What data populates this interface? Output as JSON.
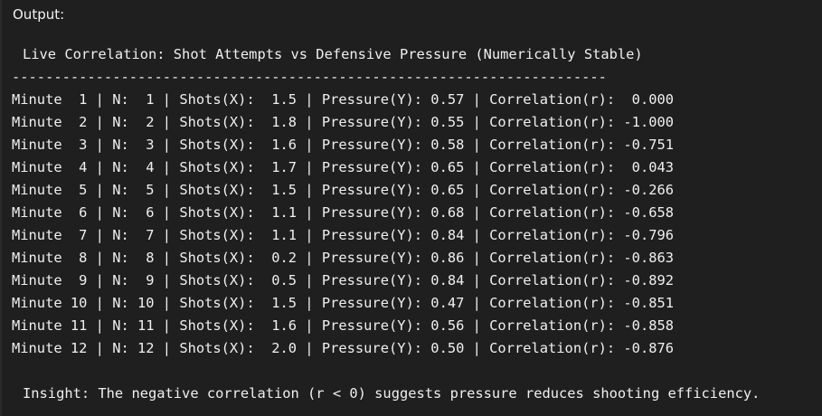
{
  "output_label": "Output:",
  "title": "Live Correlation: Shot Attempts vs Defensive Pressure (Numerically Stable)",
  "separator": "-----------------------------------------------------------------------",
  "rows": [
    "Minute  1 | N:  1 | Shots(X):  1.5 | Pressure(Y): 0.57 | Correlation(r):  0.000",
    "Minute  2 | N:  2 | Shots(X):  1.8 | Pressure(Y): 0.55 | Correlation(r): -1.000",
    "Minute  3 | N:  3 | Shots(X):  1.6 | Pressure(Y): 0.58 | Correlation(r): -0.751",
    "Minute  4 | N:  4 | Shots(X):  1.7 | Pressure(Y): 0.65 | Correlation(r):  0.043",
    "Minute  5 | N:  5 | Shots(X):  1.5 | Pressure(Y): 0.65 | Correlation(r): -0.266",
    "Minute  6 | N:  6 | Shots(X):  1.1 | Pressure(Y): 0.68 | Correlation(r): -0.658",
    "Minute  7 | N:  7 | Shots(X):  1.1 | Pressure(Y): 0.84 | Correlation(r): -0.796",
    "Minute  8 | N:  8 | Shots(X):  0.2 | Pressure(Y): 0.86 | Correlation(r): -0.863",
    "Minute  9 | N:  9 | Shots(X):  0.5 | Pressure(Y): 0.84 | Correlation(r): -0.892",
    "Minute 10 | N: 10 | Shots(X):  1.5 | Pressure(Y): 0.47 | Correlation(r): -0.851",
    "Minute 11 | N: 11 | Shots(X):  1.6 | Pressure(Y): 0.56 | Correlation(r): -0.858",
    "Minute 12 | N: 12 | Shots(X):  2.0 | Pressure(Y): 0.50 | Correlation(r): -0.876"
  ],
  "insight": "Insight: The negative correlation (r < 0) suggests pressure reduces shooting efficiency."
}
